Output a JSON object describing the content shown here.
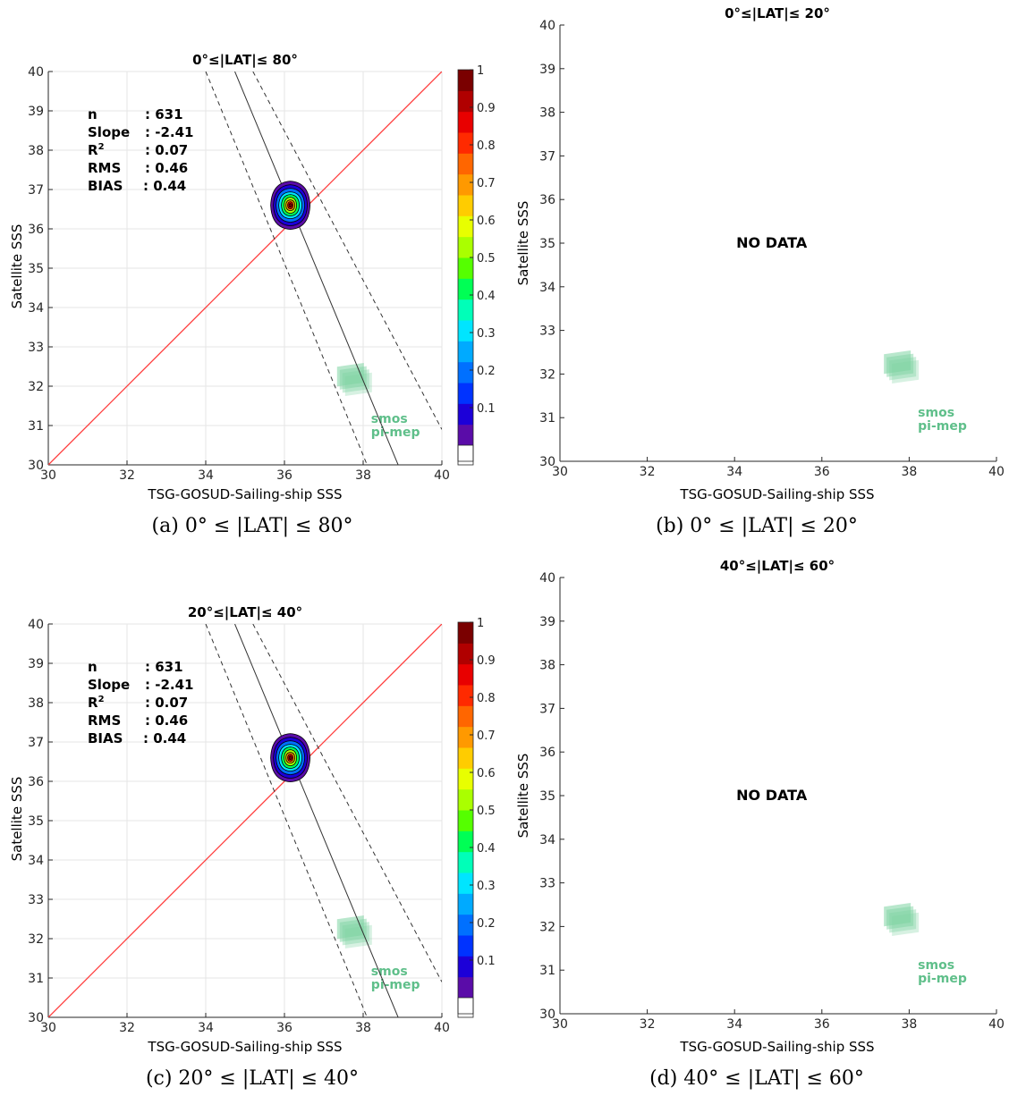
{
  "chart_data": [
    {
      "panel": "a",
      "type": "heatmap",
      "title": "0°≤|LAT|≤ 80°",
      "xlabel": "TSG-GOSUD-Sailing-ship SSS",
      "ylabel": "Satellite SSS",
      "xlim": [
        30,
        40
      ],
      "ylim": [
        30,
        40
      ],
      "xticks": [
        30,
        32,
        34,
        36,
        38,
        40
      ],
      "yticks": [
        30,
        31,
        32,
        33,
        34,
        35,
        36,
        37,
        38,
        39,
        40
      ],
      "grid": true,
      "stats": [
        {
          "label": "n",
          "value": ": 631"
        },
        {
          "label": "Slope",
          "value": ": -2.41"
        },
        {
          "label": "R2",
          "value": ": 0.07"
        },
        {
          "label": "RMS",
          "value": ": 0.46"
        },
        {
          "label": "BIAS",
          "value": ": 0.44"
        }
      ],
      "density_center": [
        36.15,
        36.6
      ],
      "one_to_one_line": {
        "color": "#ff3b3b"
      },
      "regression_line": {
        "slope": -2.41,
        "x0": 36.15,
        "y0": 36.6
      },
      "confidence_lines": [
        {
          "x_top": 34.0,
          "x_bottom": 38.1
        },
        {
          "x_top": 35.2,
          "x_bottom": 40.0,
          "y_bottom": 30.9
        }
      ],
      "colorbar_ticks": [
        "0.1",
        "0.2",
        "0.3",
        "0.4",
        "0.5",
        "0.6",
        "0.7",
        "0.8",
        "0.9",
        "1"
      ],
      "logo": [
        "smos",
        "pi-mep"
      ],
      "caption": "(a) 0° ≤ |LAT| ≤ 80°"
    },
    {
      "panel": "b",
      "type": "scatter",
      "title": "0°≤|LAT|≤ 20°",
      "xlabel": "TSG-GOSUD-Sailing-ship SSS",
      "ylabel": "Satellite SSS",
      "xlim": [
        30,
        40
      ],
      "ylim": [
        30,
        40
      ],
      "xticks": [
        30,
        32,
        34,
        36,
        38,
        40
      ],
      "yticks": [
        30,
        31,
        32,
        33,
        34,
        35,
        36,
        37,
        38,
        39,
        40
      ],
      "grid": false,
      "message": "NO DATA",
      "logo": [
        "smos",
        "pi-mep"
      ],
      "caption": "(b) 0° ≤ |LAT| ≤ 20°"
    },
    {
      "panel": "c",
      "type": "heatmap",
      "title": "20°≤|LAT|≤ 40°",
      "xlabel": "TSG-GOSUD-Sailing-ship SSS",
      "ylabel": "Satellite SSS",
      "xlim": [
        30,
        40
      ],
      "ylim": [
        30,
        40
      ],
      "xticks": [
        30,
        32,
        34,
        36,
        38,
        40
      ],
      "yticks": [
        30,
        31,
        32,
        33,
        34,
        35,
        36,
        37,
        38,
        39,
        40
      ],
      "grid": true,
      "stats": [
        {
          "label": "n",
          "value": ": 631"
        },
        {
          "label": "Slope",
          "value": ": -2.41"
        },
        {
          "label": "R2",
          "value": ": 0.07"
        },
        {
          "label": "RMS",
          "value": ": 0.46"
        },
        {
          "label": "BIAS",
          "value": ": 0.44"
        }
      ],
      "density_center": [
        36.15,
        36.6
      ],
      "one_to_one_line": {
        "color": "#ff3b3b"
      },
      "regression_line": {
        "slope": -2.41,
        "x0": 36.15,
        "y0": 36.6
      },
      "confidence_lines": [
        {
          "x_top": 34.0,
          "x_bottom": 38.1
        },
        {
          "x_top": 35.2,
          "x_bottom": 40.0,
          "y_bottom": 30.9
        }
      ],
      "colorbar_ticks": [
        "0.1",
        "0.2",
        "0.3",
        "0.4",
        "0.5",
        "0.6",
        "0.7",
        "0.8",
        "0.9",
        "1"
      ],
      "logo": [
        "smos",
        "pi-mep"
      ],
      "caption": "(c) 20° ≤ |LAT| ≤ 40°"
    },
    {
      "panel": "d",
      "type": "scatter",
      "title": "40°≤|LAT|≤ 60°",
      "xlabel": "TSG-GOSUD-Sailing-ship SSS",
      "ylabel": "Satellite SSS",
      "xlim": [
        30,
        40
      ],
      "ylim": [
        30,
        40
      ],
      "xticks": [
        30,
        32,
        34,
        36,
        38,
        40
      ],
      "yticks": [
        30,
        31,
        32,
        33,
        34,
        35,
        36,
        37,
        38,
        39,
        40
      ],
      "grid": false,
      "message": "NO DATA",
      "logo": [
        "smos",
        "pi-mep"
      ],
      "caption": "(d) 40° ≤ |LAT| ≤ 60°"
    }
  ],
  "colorbar_colors": [
    "#5a0ca8",
    "#1c00d8",
    "#0033ff",
    "#0070ff",
    "#00aaff",
    "#00e5ff",
    "#00ffb8",
    "#00ff55",
    "#55ff00",
    "#aaff00",
    "#e8ff00",
    "#ffcc00",
    "#ff9900",
    "#ff6600",
    "#ff2a00",
    "#e80000",
    "#b00000",
    "#7a0000"
  ],
  "logo_colors": {
    "text": "#5fbf8a",
    "block": "#7dd3a2"
  }
}
